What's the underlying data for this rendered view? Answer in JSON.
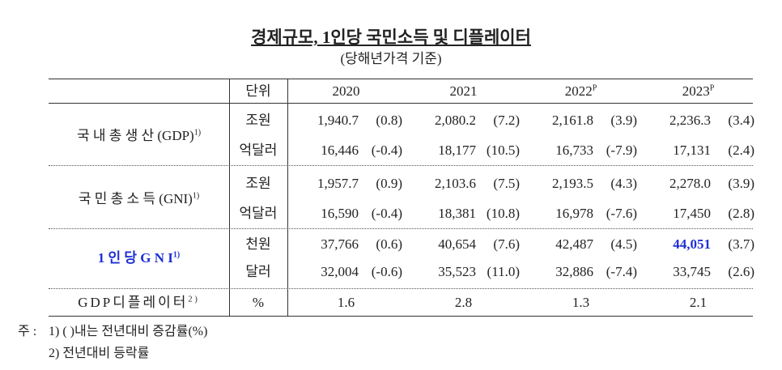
{
  "header": {
    "title": "경제규모, 1인당 국민소득 및 디플레이터",
    "subtitle": "(당해년가격 기준)"
  },
  "table": {
    "unit_header": "단위",
    "years": [
      {
        "label": "2020"
      },
      {
        "label": "2021"
      },
      {
        "label": "2022",
        "sup": "P"
      },
      {
        "label": "2023",
        "sup": "P"
      }
    ],
    "groups": [
      {
        "label": "국 내 총 생 산 (GDP)",
        "sup": "1)",
        "rows": [
          {
            "unit": "조원",
            "cells": [
              [
                "1,940.7",
                "(0.8)"
              ],
              [
                "2,080.2",
                "(7.2)"
              ],
              [
                "2,161.8",
                "(3.9)"
              ],
              [
                "2,236.3",
                "(3.4)"
              ]
            ]
          },
          {
            "unit": "억달러",
            "cells": [
              [
                "16,446",
                "(-0.4)"
              ],
              [
                "18,177",
                "(10.5)"
              ],
              [
                "16,733",
                "(-7.9)"
              ],
              [
                "17,131",
                "(2.4)"
              ]
            ]
          }
        ]
      },
      {
        "label": "국 민 총 소 득 (GNI)",
        "sup": "1)",
        "rows": [
          {
            "unit": "조원",
            "cells": [
              [
                "1,957.7",
                "(0.9)"
              ],
              [
                "2,103.6",
                "(7.5)"
              ],
              [
                "2,193.5",
                "(4.3)"
              ],
              [
                "2,278.0",
                "(3.9)"
              ]
            ]
          },
          {
            "unit": "억달러",
            "cells": [
              [
                "16,590",
                "(-0.4)"
              ],
              [
                "18,381",
                "(10.8)"
              ],
              [
                "16,978",
                "(-7.6)"
              ],
              [
                "17,450",
                "(2.8)"
              ]
            ]
          }
        ]
      },
      {
        "label": "1 인 당 G N I",
        "sup": "1)",
        "highlight": true,
        "rows": [
          {
            "unit": "천원",
            "cells": [
              [
                "37,766",
                "(0.6)"
              ],
              [
                "40,654",
                "(7.6)"
              ],
              [
                "42,487",
                "(4.5)"
              ],
              [
                "44,051",
                "(3.7)"
              ]
            ]
          },
          {
            "unit": "달러",
            "cells": [
              [
                "32,004",
                "(-0.6)"
              ],
              [
                "35,523",
                "(11.0)"
              ],
              [
                "32,886",
                "(-7.4)"
              ],
              [
                "33,745",
                "(2.6)"
              ]
            ]
          }
        ]
      }
    ],
    "deflator": {
      "label": "GDP디플레이터",
      "sup": "2)",
      "unit": "%",
      "values": [
        "1.6",
        "2.8",
        "1.3",
        "2.1"
      ]
    }
  },
  "notes": {
    "prefix": "주 :",
    "items": [
      "1) ( )내는 전년대비 증감률(%)",
      "2) 전년대비 등락률"
    ]
  }
}
